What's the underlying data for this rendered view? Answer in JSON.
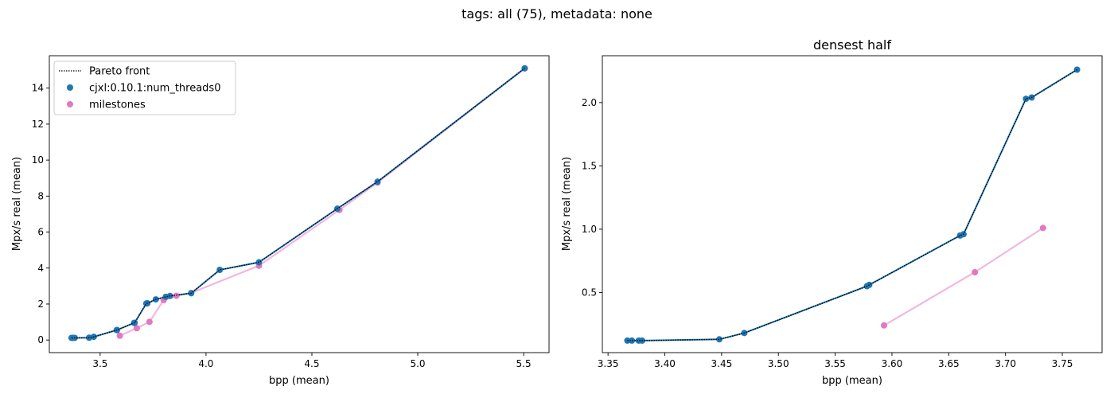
{
  "suptitle": "tags: all (75), metadata: none",
  "colors": {
    "cjxl": "#1f77b4",
    "milestones": "#e377c2",
    "milestones_line": "#f0b8e0",
    "pareto": "#000000"
  },
  "chart_data": [
    {
      "type": "scatter",
      "title": "",
      "xlabel": "bpp (mean)",
      "ylabel": "Mpx/s real (mean)",
      "xlim": [
        3.26,
        5.62
      ],
      "ylim": [
        -0.7,
        15.8
      ],
      "xticks": [
        3.5,
        4.0,
        4.5,
        5.0,
        5.5
      ],
      "xtick_labels": [
        "3.5",
        "4.0",
        "4.5",
        "5.0",
        "5.5"
      ],
      "yticks": [
        0,
        2,
        4,
        6,
        8,
        10,
        12,
        14
      ],
      "ytick_labels": [
        "0",
        "2",
        "4",
        "6",
        "8",
        "10",
        "12",
        "14"
      ],
      "grid": false,
      "legend": {
        "placement": "upper-left",
        "entries": [
          {
            "label": "Pareto front",
            "kind": "line"
          },
          {
            "label": "cjxl:0.10.1:num_threads0",
            "kind": "marker",
            "series": "cjxl"
          },
          {
            "label": "milestones",
            "kind": "marker",
            "series": "milestones"
          }
        ]
      },
      "series": [
        {
          "name": "cjxl:0.10.1:num_threads0",
          "key": "cjxl",
          "x": [
            3.365,
            3.37,
            3.38,
            3.448,
            3.47,
            3.578,
            3.58,
            3.66,
            3.663,
            3.718,
            3.723,
            3.763,
            3.81,
            3.83,
            3.93,
            4.065,
            4.25,
            4.62,
            4.81,
            5.505
          ],
          "y": [
            0.12,
            0.12,
            0.12,
            0.13,
            0.18,
            0.55,
            0.56,
            0.95,
            0.96,
            2.03,
            2.04,
            2.26,
            2.4,
            2.45,
            2.6,
            3.9,
            4.32,
            7.3,
            8.8,
            15.1
          ]
        },
        {
          "name": "milestones",
          "key": "milestones",
          "x": [
            3.593,
            3.673,
            3.733,
            3.8,
            3.86,
            3.93,
            4.25,
            4.63,
            4.81,
            5.505
          ],
          "y": [
            0.24,
            0.66,
            1.01,
            2.22,
            2.46,
            2.62,
            4.13,
            7.23,
            8.75,
            15.1
          ]
        }
      ],
      "pareto_front": {
        "x": [
          3.365,
          3.37,
          3.38,
          3.448,
          3.47,
          3.578,
          3.58,
          3.66,
          3.663,
          3.718,
          3.723,
          3.763,
          3.81,
          3.83,
          3.93,
          4.065,
          4.25,
          4.62,
          4.81,
          5.505
        ],
        "y": [
          0.12,
          0.12,
          0.12,
          0.13,
          0.18,
          0.55,
          0.56,
          0.95,
          0.96,
          2.03,
          2.04,
          2.26,
          2.4,
          2.45,
          2.6,
          3.9,
          4.32,
          7.3,
          8.8,
          15.1
        ]
      }
    },
    {
      "type": "scatter",
      "title": "densest half",
      "xlabel": "bpp (mean)",
      "ylabel": "Mpx/s real (mean)",
      "xlim": [
        3.345,
        3.785
      ],
      "ylim": [
        0.025,
        2.37
      ],
      "xticks": [
        3.35,
        3.4,
        3.45,
        3.5,
        3.55,
        3.6,
        3.65,
        3.7,
        3.75
      ],
      "xtick_labels": [
        "3.35",
        "3.40",
        "3.45",
        "3.50",
        "3.55",
        "3.60",
        "3.65",
        "3.70",
        "3.75"
      ],
      "yticks": [
        0.5,
        1.0,
        1.5,
        2.0
      ],
      "ytick_labels": [
        "0.5",
        "1.0",
        "1.5",
        "2.0"
      ],
      "grid": false,
      "series": [
        {
          "name": "cjxl:0.10.1:num_threads0",
          "key": "cjxl",
          "x": [
            3.367,
            3.371,
            3.377,
            3.38,
            3.448,
            3.47,
            3.578,
            3.58,
            3.66,
            3.663,
            3.718,
            3.723,
            3.763
          ],
          "y": [
            0.12,
            0.12,
            0.12,
            0.12,
            0.13,
            0.18,
            0.55,
            0.56,
            0.95,
            0.96,
            2.03,
            2.04,
            2.26
          ]
        },
        {
          "name": "milestones",
          "key": "milestones",
          "x": [
            3.593,
            3.673,
            3.733
          ],
          "y": [
            0.24,
            0.66,
            1.01
          ]
        }
      ],
      "pareto_front": {
        "x": [
          3.367,
          3.371,
          3.377,
          3.38,
          3.448,
          3.47,
          3.578,
          3.58,
          3.66,
          3.663,
          3.718,
          3.723,
          3.763
        ],
        "y": [
          0.12,
          0.12,
          0.12,
          0.12,
          0.13,
          0.18,
          0.55,
          0.56,
          0.95,
          0.96,
          2.03,
          2.04,
          2.26
        ]
      }
    }
  ]
}
